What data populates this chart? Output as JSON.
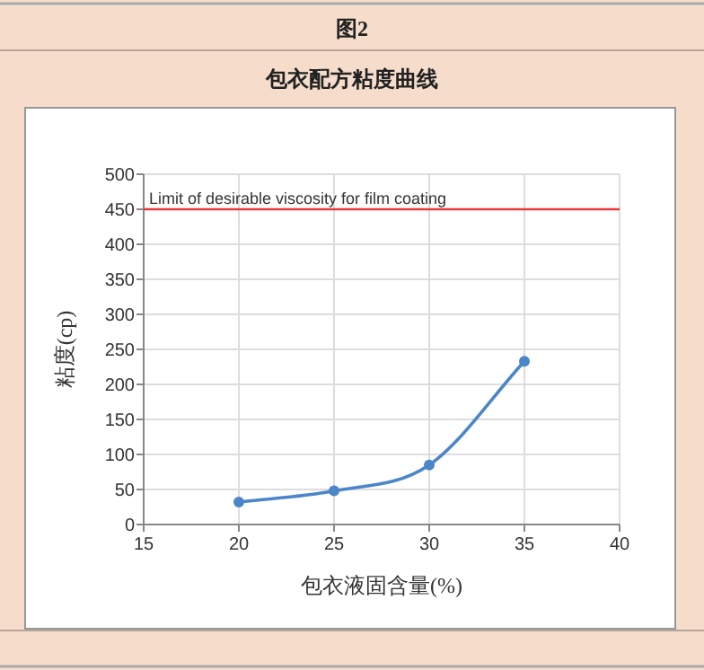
{
  "chart_data": {
    "type": "line",
    "title": "包衣配方粘度曲线",
    "annotations": [
      "图2"
    ],
    "xlabel": "包衣液固含量(%)",
    "ylabel": "粘度(cp)",
    "x": [
      20,
      25,
      30,
      35
    ],
    "series": [
      {
        "color": "#4a86c8",
        "values": [
          32,
          48,
          85,
          233
        ]
      }
    ],
    "xlim": [
      15,
      40
    ],
    "xticks": [
      15,
      20,
      25,
      30,
      35,
      40
    ],
    "ylim": [
      0,
      500
    ],
    "yticks": [
      0,
      50,
      100,
      150,
      200,
      250,
      300,
      350,
      400,
      450,
      500
    ],
    "ref_lines": [
      {
        "axis": "y",
        "value": 450,
        "label": "Limit of desirable viscosity for film coating",
        "color": "#e8393b"
      }
    ],
    "grid": true,
    "marker": "circle",
    "line_style": "solid"
  }
}
